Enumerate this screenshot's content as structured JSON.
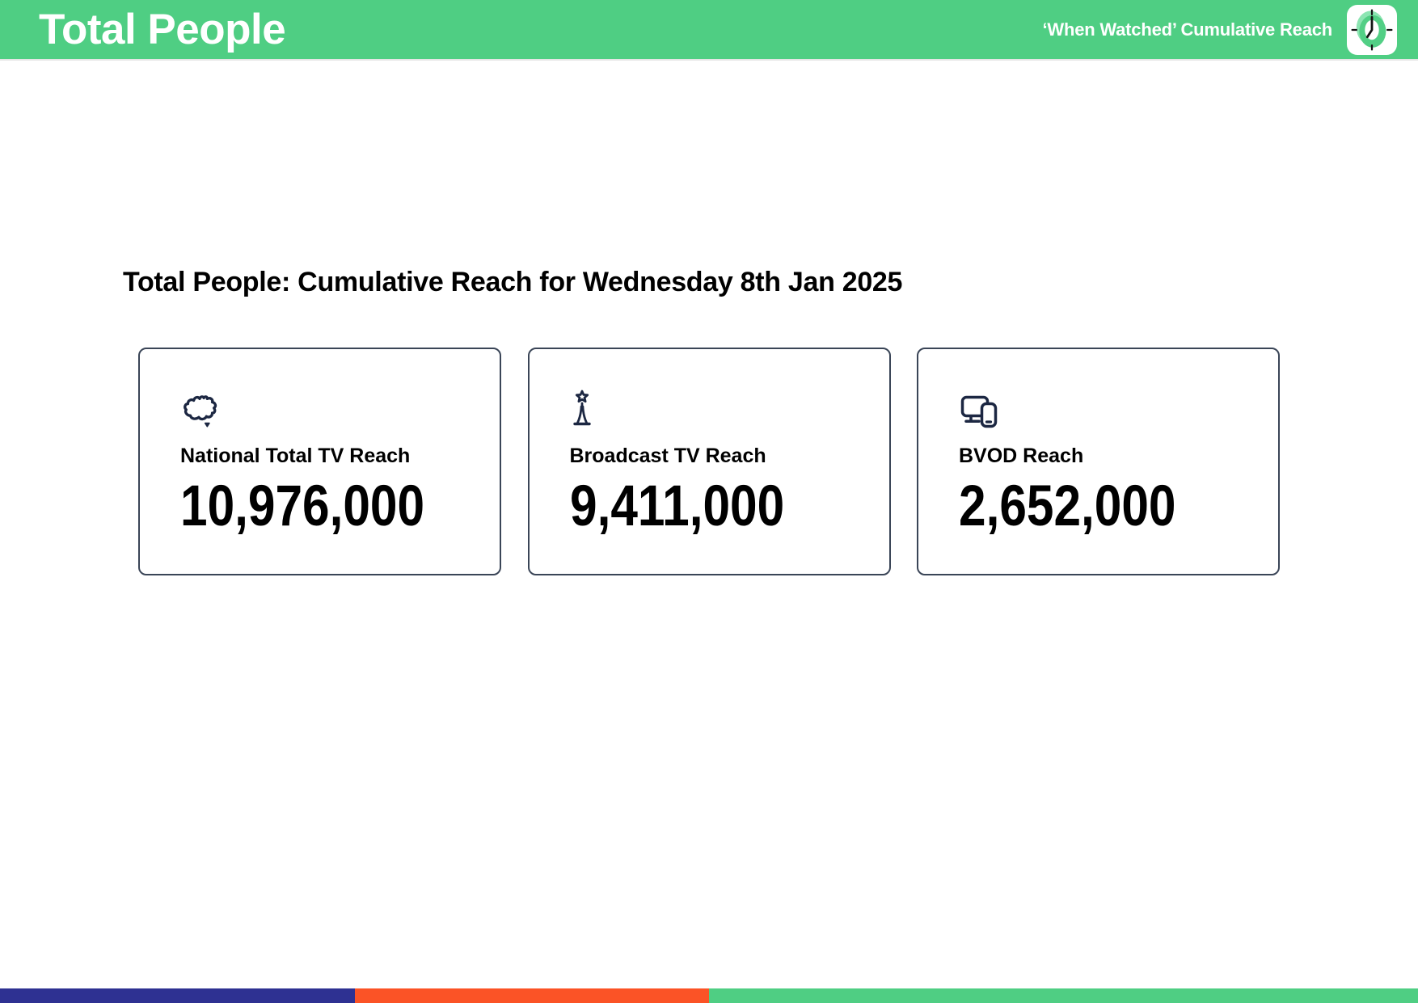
{
  "header": {
    "title": "Total People",
    "right_label": "‘When Watched’ Cumulative Reach",
    "logo_icon": "clock-logo"
  },
  "main": {
    "heading": "Total People: Cumulative Reach for Wednesday 8th Jan 2025",
    "cards": [
      {
        "icon": "australia-map-icon",
        "label": "National Total TV Reach",
        "value": "10,976,000"
      },
      {
        "icon": "broadcast-tower-icon",
        "label": "Broadcast TV Reach",
        "value": "9,411,000"
      },
      {
        "icon": "devices-icon",
        "label": "BVOD Reach",
        "value": "2,652,000"
      }
    ]
  },
  "footer": {
    "segments": [
      {
        "name": "footer-segment-blue",
        "color": "#2E3192",
        "width_pct": 25
      },
      {
        "name": "footer-segment-orange",
        "color": "#FB5326",
        "width_pct": 25
      },
      {
        "name": "footer-segment-green",
        "color": "#4FCE83",
        "width_pct": 50
      }
    ]
  },
  "colors": {
    "header_green": "#4FCE83",
    "icon_navy": "#1C2742",
    "card_border": "#3A4557"
  }
}
